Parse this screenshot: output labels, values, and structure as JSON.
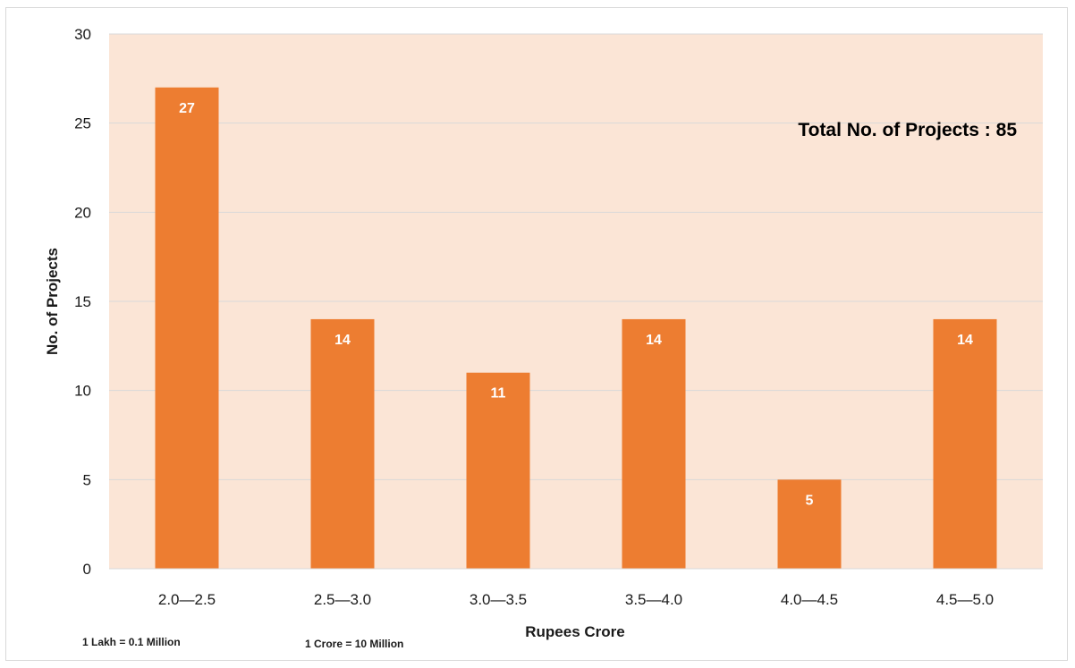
{
  "chart_data": {
    "type": "bar",
    "categories": [
      "2.0—2.5",
      "2.5—3.0",
      "3.0—3.5",
      "3.5—4.0",
      "4.0—4.5",
      "4.5—5.0"
    ],
    "values": [
      27,
      14,
      11,
      14,
      5,
      14
    ],
    "xlabel": "Rupees Crore",
    "ylabel": "No. of Projects",
    "ylim": [
      0,
      30
    ],
    "yticks": [
      "0",
      "5",
      "10",
      "15",
      "20",
      "25",
      "30"
    ],
    "grid": true,
    "data_labels": true,
    "annotations": {
      "total": "Total No. of Projects : 85",
      "note_lakh": "1 Lakh = 0.1 Million",
      "note_crore": "1 Crore = 10 Million"
    },
    "colors": {
      "bar": "#ED7D31",
      "plot_background": "#FBE5D6",
      "grid": "#D9D9D9"
    }
  }
}
